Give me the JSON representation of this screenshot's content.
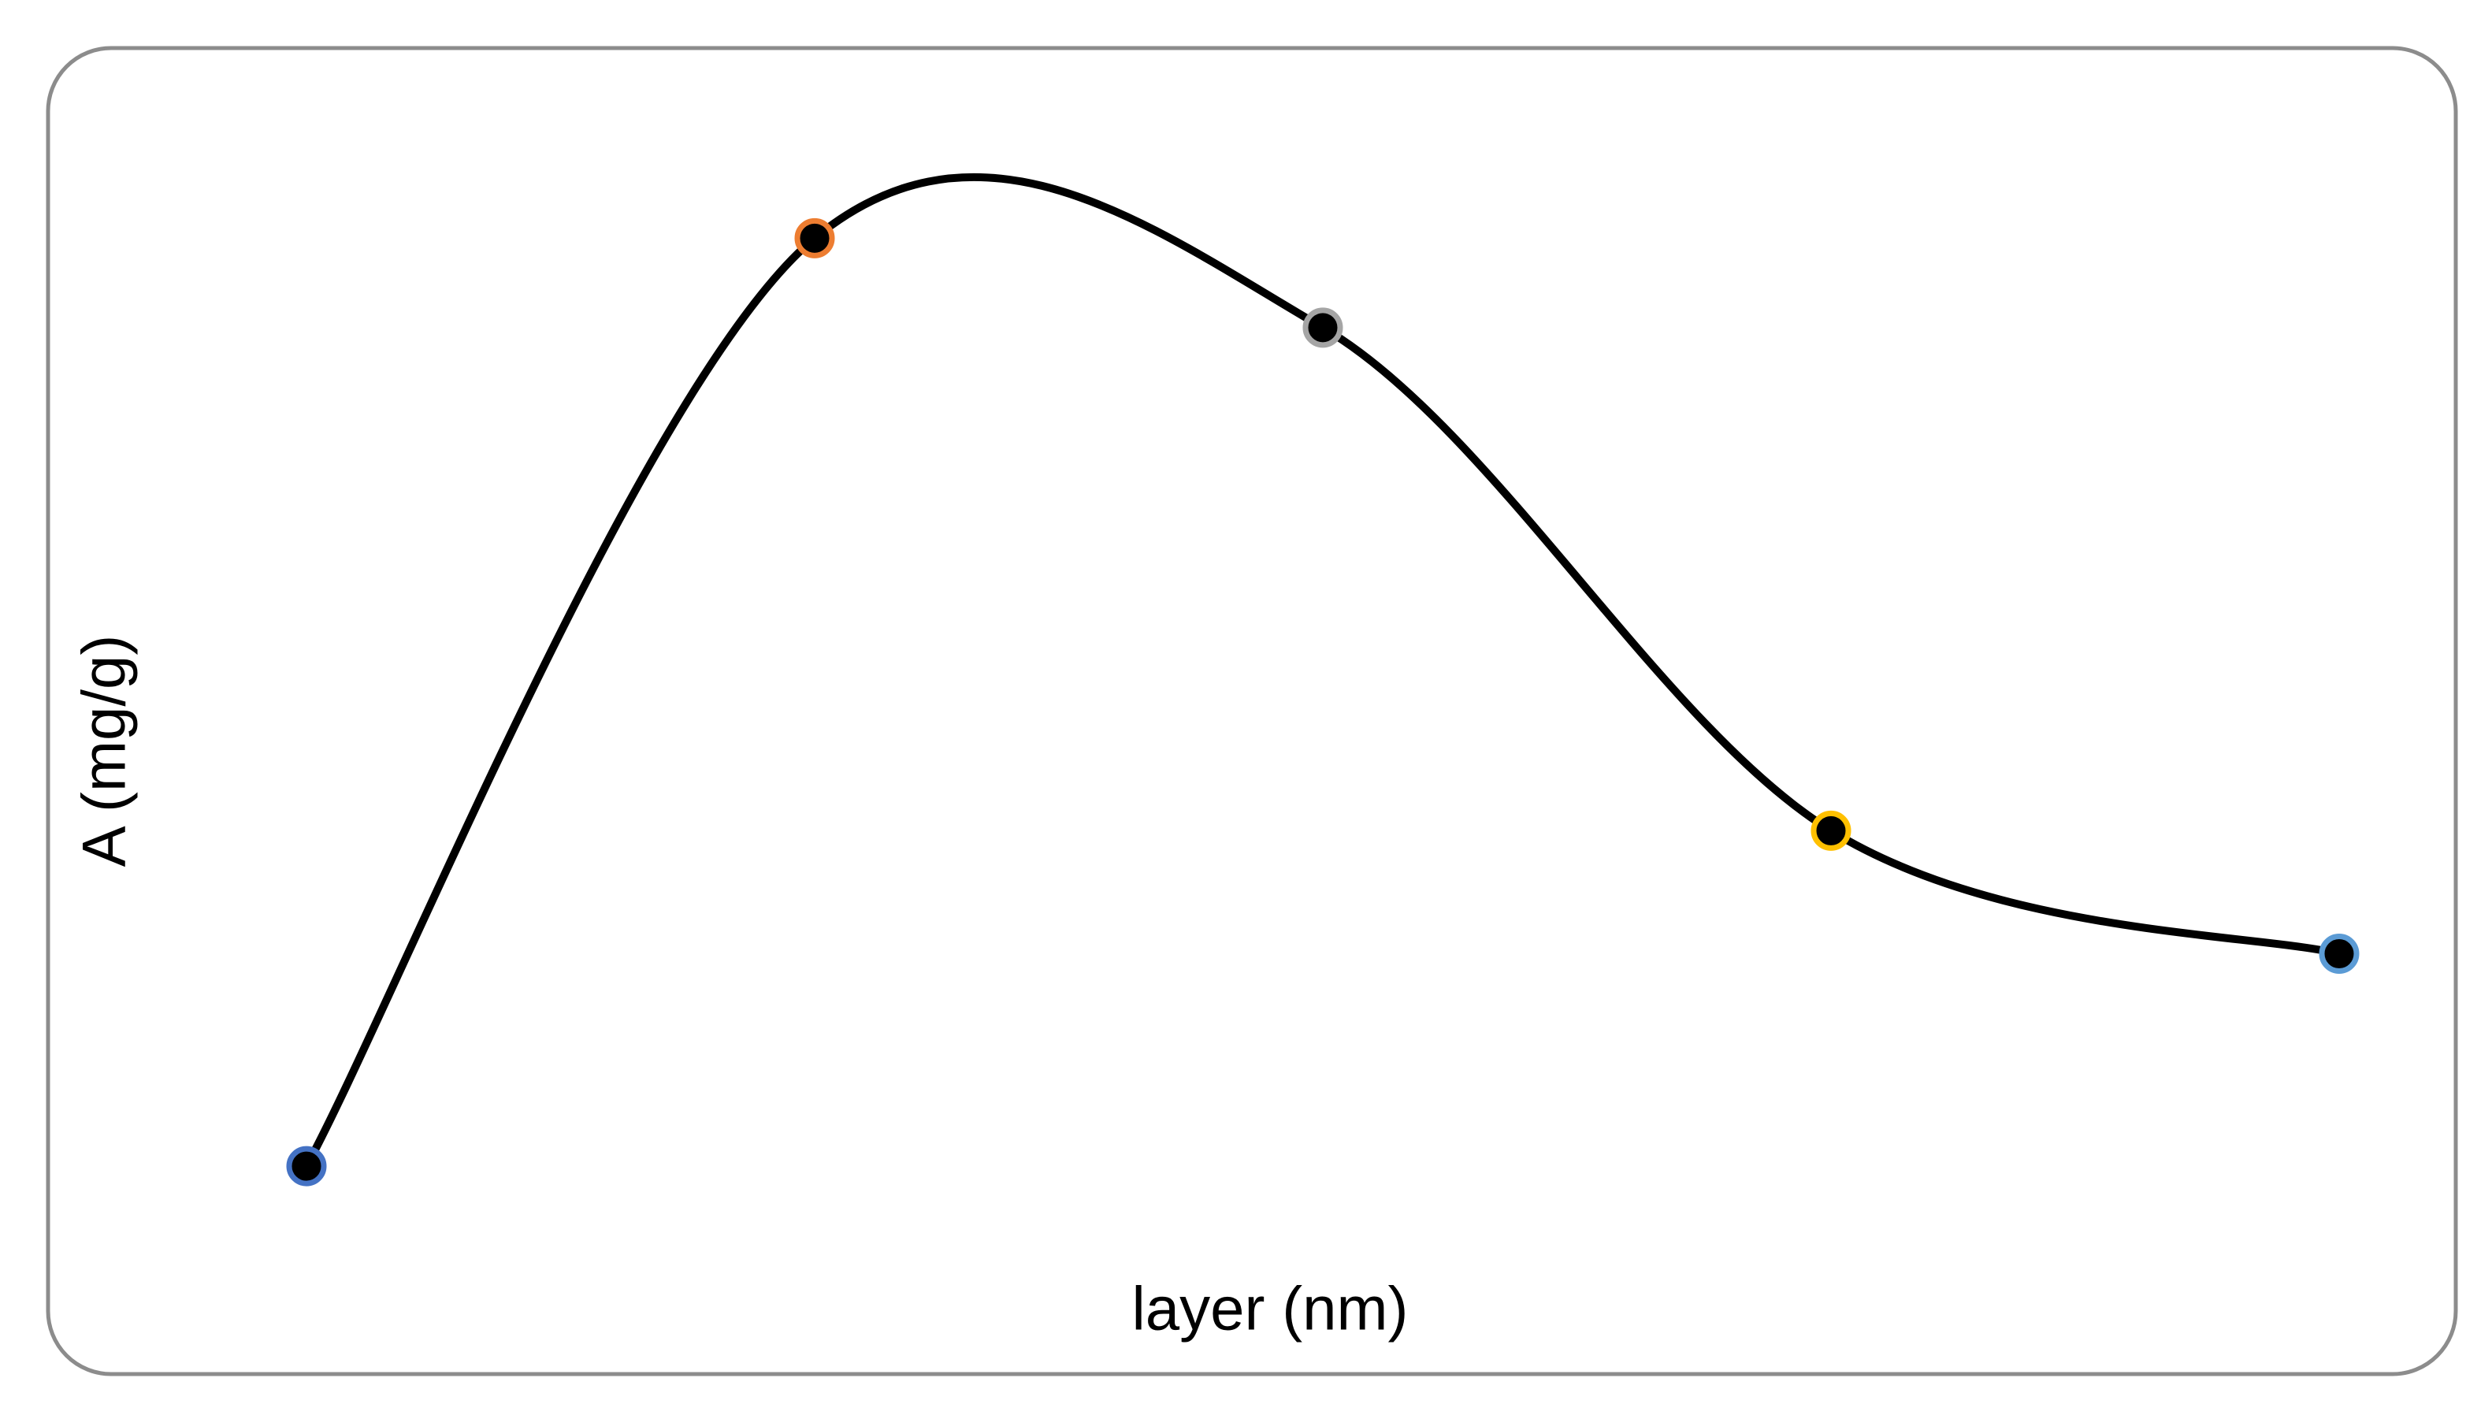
{
  "chart_data": {
    "type": "line",
    "x_label": "layer (nm)",
    "y_label": "A (mg/g)",
    "categories": [
      null,
      null,
      null,
      null,
      null
    ],
    "values": [
      10,
      93,
      85,
      40,
      29
    ],
    "ylim": [
      0,
      100
    ],
    "smooth": true,
    "color": "#000000",
    "marker_fill": "#000000",
    "marker_colors": [
      "#4472c4",
      "#ed7d31",
      "#a5a5a5",
      "#ffc000",
      "#5b9bd5"
    ]
  }
}
